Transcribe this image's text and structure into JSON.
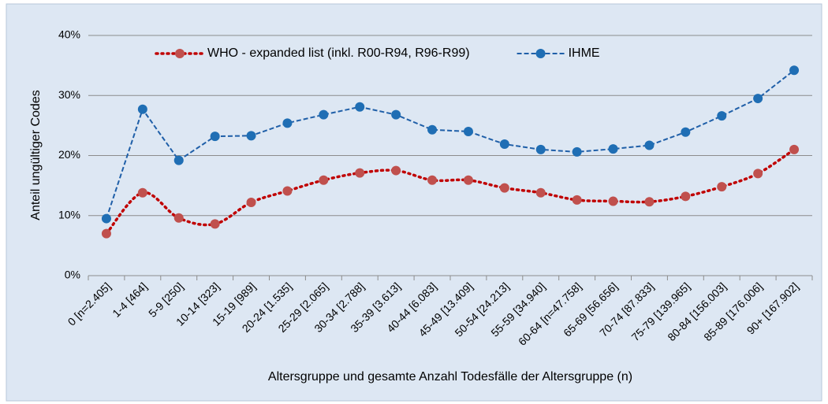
{
  "chart_data": {
    "type": "line",
    "x_label": "Altersgruppe und gesamte Anzahl Todesfälle der Altersgruppe (n)",
    "y_label": "Anteil ungültiger Codes",
    "categories": [
      "0 [n=2.405]",
      "1-4 [464]",
      "5-9 [250]",
      "10-14 [323]",
      "15-19 [989]",
      "20-24 [1.535]",
      "25-29 [2.065]",
      "30-34 [2.788]",
      "35-39 [3.613]",
      "40-44 [6.083]",
      "45-49 [13.409]",
      "50-54 [24.213]",
      "55-59 [34.940]",
      "60-64 [n=47.758]",
      "65-69 [56.656]",
      "70-74 [87.833]",
      "75-79 [139.965]",
      "80-84 [156.003]",
      "85-89 [176.006]",
      "90+ [167.902]"
    ],
    "series": [
      {
        "name": "WHO - expanded list (inkl. R00-R94, R96-R99)",
        "color": "#c0504d",
        "line_color": "#c00000",
        "line_style": "dotted",
        "smooth": true,
        "values": [
          7.0,
          13.8,
          9.6,
          8.6,
          12.2,
          14.1,
          15.9,
          17.1,
          17.5,
          15.9,
          15.9,
          14.6,
          13.8,
          12.6,
          12.4,
          12.3,
          13.2,
          14.8,
          17.0,
          21.0
        ]
      },
      {
        "name": "IHME",
        "color": "#1f6eb4",
        "line_color": "#1f5fa8",
        "line_style": "dashed",
        "smooth": false,
        "values": [
          9.5,
          27.7,
          19.2,
          23.2,
          23.3,
          25.4,
          26.8,
          28.1,
          26.8,
          24.3,
          24.0,
          21.9,
          21.0,
          20.6,
          21.1,
          21.7,
          23.9,
          26.6,
          29.5,
          34.2
        ]
      }
    ],
    "ylim": [
      0,
      40
    ],
    "yticks": [
      {
        "value": 0,
        "label": "0%"
      },
      {
        "value": 10,
        "label": "10%"
      },
      {
        "value": 20,
        "label": "20%"
      },
      {
        "value": 30,
        "label": "30%"
      },
      {
        "value": 40,
        "label": "40%"
      }
    ],
    "grid": true,
    "legend": "top"
  }
}
